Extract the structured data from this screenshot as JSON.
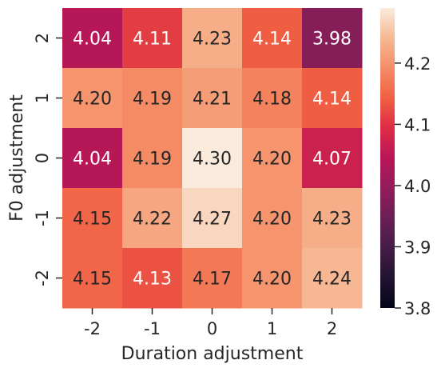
{
  "chart_data": {
    "type": "heatmap",
    "title": "",
    "xlabel": "Duration adjustment",
    "ylabel": "F0 adjustment",
    "x_categories": [
      "-2",
      "-1",
      "0",
      "1",
      "2"
    ],
    "y_categories": [
      "2",
      "1",
      "0",
      "-1",
      "-2"
    ],
    "values": [
      [
        4.04,
        4.11,
        4.23,
        4.14,
        3.98
      ],
      [
        4.2,
        4.19,
        4.21,
        4.18,
        4.14
      ],
      [
        4.04,
        4.19,
        4.3,
        4.2,
        4.07
      ],
      [
        4.15,
        4.22,
        4.27,
        4.2,
        4.23
      ],
      [
        4.15,
        4.13,
        4.17,
        4.2,
        4.24
      ]
    ],
    "cell_labels": [
      [
        "4.04",
        "4.11",
        "4.23",
        "4.14",
        "3.98"
      ],
      [
        "4.20",
        "4.19",
        "4.21",
        "4.18",
        "4.14"
      ],
      [
        "4.04",
        "4.19",
        "4.30",
        "4.20",
        "4.07"
      ],
      [
        "4.15",
        "4.22",
        "4.27",
        "4.20",
        "4.23"
      ],
      [
        "4.15",
        "4.13",
        "4.17",
        "4.20",
        "4.24"
      ]
    ],
    "colorbar": {
      "range": [
        3.8,
        4.29
      ],
      "ticks": [
        3.8,
        3.9,
        4.0,
        4.1,
        4.2
      ],
      "tick_labels": [
        "3.8",
        "3.9",
        "4.0",
        "4.1",
        "4.2"
      ],
      "colormap": "rocket"
    },
    "grid": false,
    "legend": "colorbar-right"
  }
}
